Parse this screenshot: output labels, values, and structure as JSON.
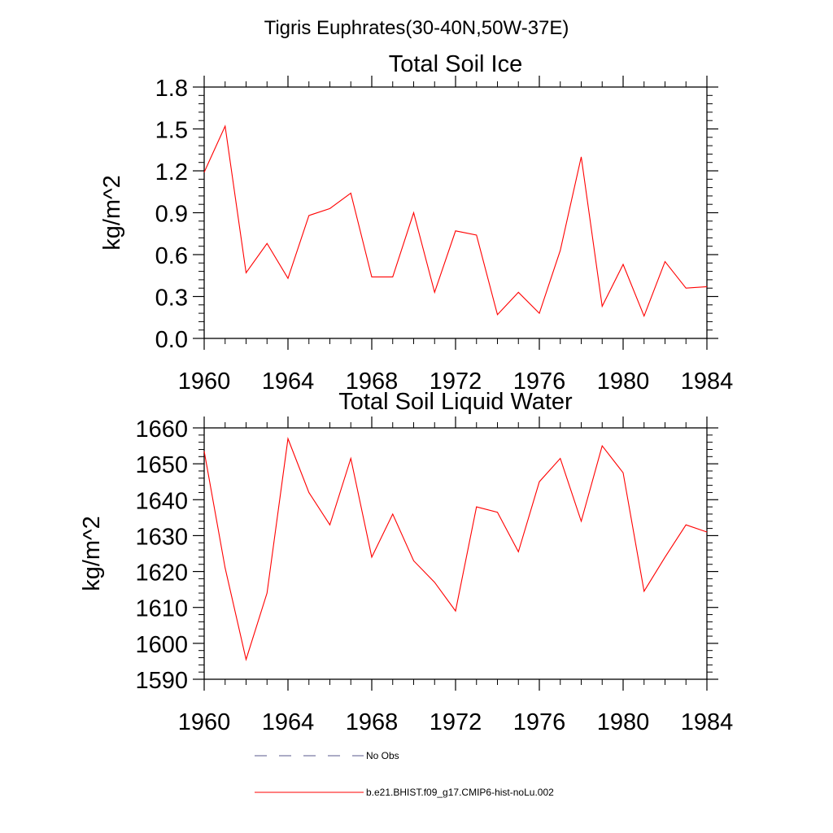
{
  "page_title": "Tigris Euphrates(30-40N,50W-37E)",
  "chart_data": [
    {
      "type": "line",
      "title": "Total Soil Ice",
      "xlabel": "",
      "ylabel": "kg/m^2",
      "xlim": [
        1960,
        1984
      ],
      "ylim": [
        0.0,
        1.8
      ],
      "x_ticks": [
        "1960",
        "1964",
        "1968",
        "1972",
        "1976",
        "1980",
        "1984"
      ],
      "y_ticks": [
        "0.0",
        "0.3",
        "0.6",
        "0.9",
        "1.2",
        "1.5",
        "1.8"
      ],
      "grid": false,
      "x": [
        1960,
        1961,
        1962,
        1963,
        1964,
        1965,
        1966,
        1967,
        1968,
        1969,
        1970,
        1971,
        1972,
        1973,
        1974,
        1975,
        1976,
        1977,
        1978,
        1979,
        1980,
        1981,
        1982,
        1983,
        1984
      ],
      "series": [
        {
          "name": "b.e21.BHIST.f09_g17.CMIP6-hist-noLu.002",
          "color": "#ff0000",
          "values": [
            1.19,
            1.52,
            0.47,
            0.68,
            0.43,
            0.88,
            0.93,
            1.04,
            0.44,
            0.44,
            0.9,
            0.33,
            0.77,
            0.74,
            0.17,
            0.33,
            0.18,
            0.63,
            1.3,
            0.23,
            0.53,
            0.16,
            0.55,
            0.36,
            0.37
          ]
        }
      ]
    },
    {
      "type": "line",
      "title": "Total Soil Liquid Water",
      "xlabel": "",
      "ylabel": "kg/m^2",
      "xlim": [
        1960,
        1984
      ],
      "ylim": [
        1590,
        1660
      ],
      "x_ticks": [
        "1960",
        "1964",
        "1968",
        "1972",
        "1976",
        "1980",
        "1984"
      ],
      "y_ticks": [
        "1590",
        "1600",
        "1610",
        "1620",
        "1630",
        "1640",
        "1650",
        "1660"
      ],
      "grid": false,
      "x": [
        1960,
        1961,
        1962,
        1963,
        1964,
        1965,
        1966,
        1967,
        1968,
        1969,
        1970,
        1971,
        1972,
        1973,
        1974,
        1975,
        1976,
        1977,
        1978,
        1979,
        1980,
        1981,
        1982,
        1983,
        1984
      ],
      "series": [
        {
          "name": "b.e21.BHIST.f09_g17.CMIP6-hist-noLu.002",
          "color": "#ff0000",
          "values": [
            1653.5,
            1621,
            1595.5,
            1614,
            1657,
            1642,
            1633,
            1651.5,
            1624,
            1636,
            1623,
            1617,
            1609,
            1638,
            1636.5,
            1625.5,
            1645,
            1651.5,
            1634,
            1655,
            1647.5,
            1614.5,
            1624,
            1633,
            1631
          ]
        }
      ]
    }
  ],
  "legend": {
    "placement": "bottom",
    "items": [
      {
        "label": "No Obs",
        "color": "#5a5a8c",
        "style": "dashed"
      },
      {
        "label": "b.e21.BHIST.f09_g17.CMIP6-hist-noLu.002",
        "color": "#ff0000",
        "style": "solid"
      }
    ]
  }
}
